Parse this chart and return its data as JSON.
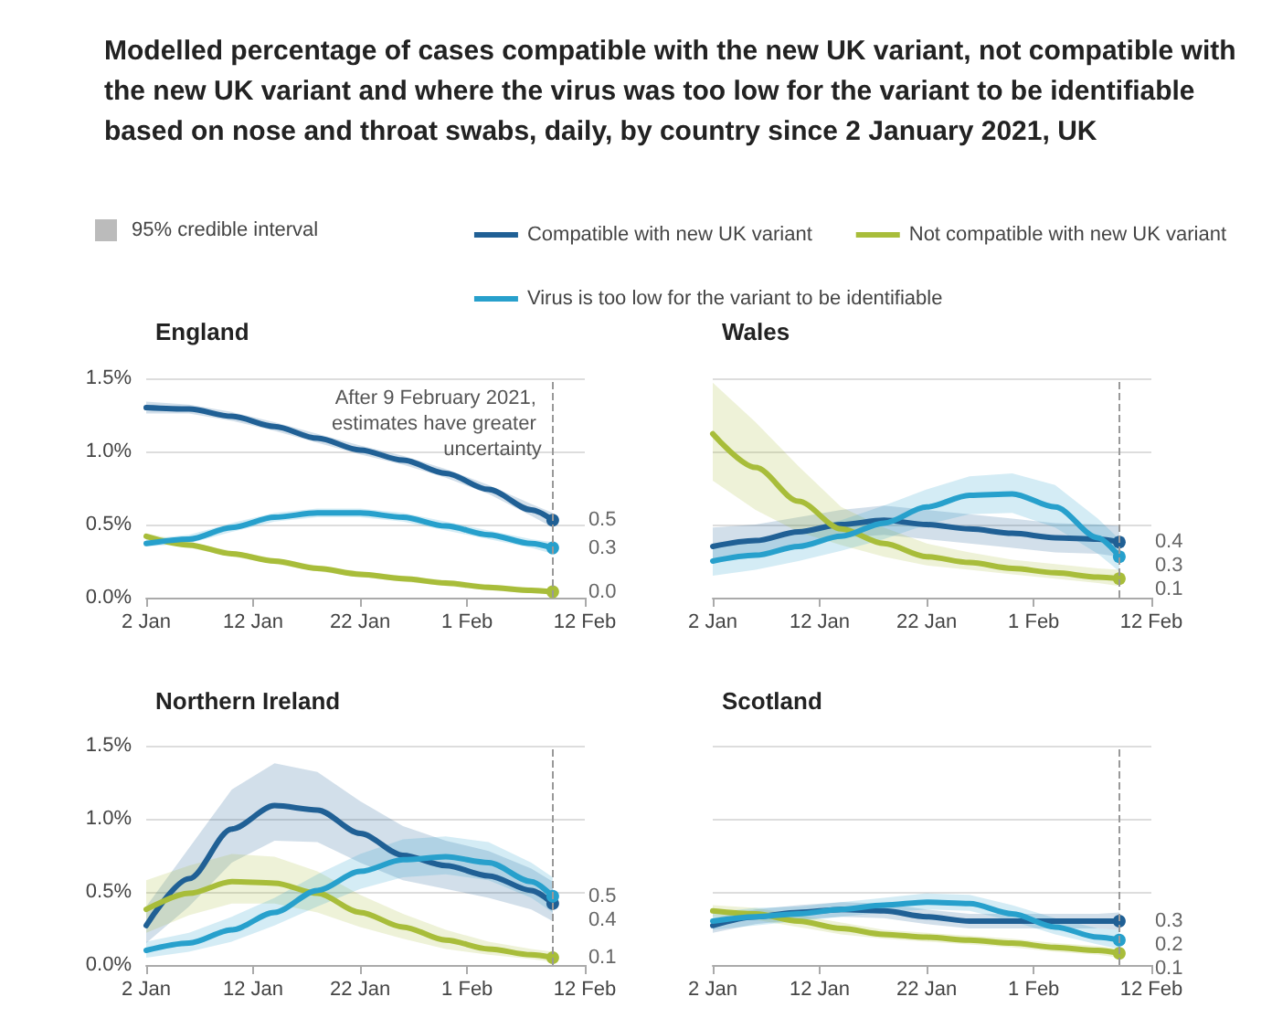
{
  "chart_data": [
    {
      "type": "line",
      "title": "Modelled percentage of cases compatible with the new UK variant, not compatible with the new UK variant and where the virus was too low for the variant to be identifiable based on nose and throat swabs, daily, by country since 2 January 2021, UK",
      "subtitle": "England",
      "annotations": [
        "95% credible interval"
      ],
      "legend": "top right",
      "grid": "y",
      "x": [
        "2021-01-02",
        "2021-01-06",
        "2021-01-10",
        "2021-01-14",
        "2021-01-18",
        "2021-01-22",
        "2021-01-26",
        "2021-01-30",
        "2021-02-03",
        "2021-02-07",
        "2021-02-09"
      ],
      "xlim": [
        "2021-01-02",
        "2021-02-12"
      ],
      "xticks": [
        {
          "value": "2021-01-02",
          "label": "2 Jan"
        },
        {
          "value": "2021-01-12",
          "label": "12 Jan"
        },
        {
          "value": "2021-01-22",
          "label": "22 Jan"
        },
        {
          "value": "2021-02-01",
          "label": "1 Feb"
        },
        {
          "value": "2021-02-12",
          "label": "12 Feb"
        }
      ],
      "ylim": [
        0,
        1.5
      ],
      "yticks": [
        {
          "value": 0,
          "label": "0.0%"
        },
        {
          "value": 0.5,
          "label": "0.5%"
        },
        {
          "value": 1,
          "label": "1.0%"
        },
        {
          "value": 1.5,
          "label": "1.5%"
        }
      ],
      "ref_lines": [
        {
          "axis": "x",
          "value": "2021-02-09",
          "label": "After 9 February 2021, estimates have greater uncertainty",
          "line_style": "dashed",
          "color": "#999999"
        }
      ],
      "series": [
        {
          "name": "Compatible with new UK variant",
          "color": "#206095",
          "values": [
            1.3,
            1.29,
            1.24,
            1.17,
            1.09,
            1.01,
            0.94,
            0.85,
            0.74,
            0.6,
            0.53
          ],
          "lower": [
            1.26,
            1.26,
            1.21,
            1.14,
            1.06,
            0.98,
            0.91,
            0.82,
            0.71,
            0.56,
            0.48
          ],
          "upper": [
            1.34,
            1.32,
            1.27,
            1.2,
            1.12,
            1.04,
            0.97,
            0.88,
            0.77,
            0.64,
            0.58
          ],
          "value_labels": [
            null,
            null,
            null,
            null,
            null,
            null,
            null,
            null,
            null,
            null,
            "0.5"
          ]
        },
        {
          "name": "Not compatible with new UK variant",
          "color": "#a8bd3a",
          "values": [
            0.42,
            0.36,
            0.3,
            0.25,
            0.2,
            0.16,
            0.13,
            0.1,
            0.07,
            0.05,
            0.04
          ],
          "lower": [
            0.4,
            0.34,
            0.28,
            0.23,
            0.18,
            0.14,
            0.11,
            0.08,
            0.05,
            0.03,
            0.02
          ],
          "upper": [
            0.44,
            0.38,
            0.32,
            0.27,
            0.22,
            0.18,
            0.15,
            0.12,
            0.09,
            0.07,
            0.06
          ],
          "value_labels": [
            null,
            null,
            null,
            null,
            null,
            null,
            null,
            null,
            null,
            null,
            "0.0"
          ]
        },
        {
          "name": "Virus is too low for the variant to be identifiable",
          "color": "#27a0cc",
          "values": [
            0.37,
            0.4,
            0.48,
            0.55,
            0.58,
            0.58,
            0.55,
            0.49,
            0.43,
            0.37,
            0.34
          ],
          "lower": [
            0.35,
            0.37,
            0.45,
            0.52,
            0.55,
            0.55,
            0.52,
            0.46,
            0.4,
            0.34,
            0.3
          ],
          "upper": [
            0.4,
            0.43,
            0.51,
            0.58,
            0.61,
            0.61,
            0.58,
            0.52,
            0.46,
            0.4,
            0.38
          ],
          "value_labels": [
            null,
            null,
            null,
            null,
            null,
            null,
            null,
            null,
            null,
            null,
            "0.3"
          ]
        }
      ]
    },
    {
      "type": "line",
      "subtitle": "Wales",
      "grid": "y",
      "tick_labels": "x",
      "x": [
        "2021-01-02",
        "2021-01-06",
        "2021-01-10",
        "2021-01-14",
        "2021-01-18",
        "2021-01-22",
        "2021-01-26",
        "2021-01-30",
        "2021-02-03",
        "2021-02-07",
        "2021-02-09"
      ],
      "xlim": [
        "2021-01-02",
        "2021-02-12"
      ],
      "xticks": [
        {
          "value": "2021-01-02",
          "label": "2 Jan"
        },
        {
          "value": "2021-01-12",
          "label": "12 Jan"
        },
        {
          "value": "2021-01-22",
          "label": "22 Jan"
        },
        {
          "value": "2021-02-01",
          "label": "1 Feb"
        },
        {
          "value": "2021-02-12",
          "label": "12 Feb"
        }
      ],
      "ylim": [
        0,
        1.5
      ],
      "yticks": [
        0,
        0.5,
        1,
        1.5
      ],
      "ref_lines": [
        {
          "axis": "x",
          "value": "2021-02-09",
          "line_style": "dashed",
          "color": "#999999"
        }
      ],
      "series": [
        {
          "color": "#206095",
          "values": [
            0.35,
            0.39,
            0.45,
            0.5,
            0.53,
            0.5,
            0.47,
            0.44,
            0.41,
            0.4,
            0.38
          ],
          "lower": [
            0.25,
            0.3,
            0.36,
            0.41,
            0.43,
            0.4,
            0.37,
            0.34,
            0.31,
            0.3,
            0.28
          ],
          "upper": [
            0.48,
            0.5,
            0.55,
            0.6,
            0.63,
            0.6,
            0.57,
            0.54,
            0.51,
            0.5,
            0.49
          ],
          "value_labels": [
            null,
            null,
            null,
            null,
            null,
            null,
            null,
            null,
            null,
            null,
            "0.4"
          ]
        },
        {
          "color": "#a8bd3a",
          "values": [
            1.12,
            0.89,
            0.66,
            0.47,
            0.37,
            0.28,
            0.24,
            0.2,
            0.17,
            0.14,
            0.13
          ],
          "lower": [
            0.8,
            0.6,
            0.45,
            0.36,
            0.28,
            0.22,
            0.19,
            0.16,
            0.13,
            0.1,
            0.08
          ],
          "upper": [
            1.47,
            1.2,
            0.9,
            0.62,
            0.48,
            0.37,
            0.31,
            0.26,
            0.23,
            0.2,
            0.19
          ],
          "value_labels": [
            null,
            null,
            null,
            null,
            null,
            null,
            null,
            null,
            null,
            null,
            "0.1"
          ]
        },
        {
          "color": "#27a0cc",
          "values": [
            0.25,
            0.29,
            0.35,
            0.42,
            0.51,
            0.62,
            0.7,
            0.71,
            0.62,
            0.41,
            0.28
          ],
          "lower": [
            0.15,
            0.19,
            0.25,
            0.32,
            0.4,
            0.5,
            0.57,
            0.58,
            0.48,
            0.3,
            0.18
          ],
          "upper": [
            0.37,
            0.4,
            0.46,
            0.53,
            0.63,
            0.74,
            0.83,
            0.85,
            0.77,
            0.54,
            0.4
          ],
          "value_labels": [
            null,
            null,
            null,
            null,
            null,
            null,
            null,
            null,
            null,
            null,
            "0.3"
          ]
        }
      ]
    },
    {
      "type": "line",
      "subtitle": "Northern Ireland",
      "grid": "y",
      "x": [
        "2021-01-02",
        "2021-01-06",
        "2021-01-10",
        "2021-01-14",
        "2021-01-18",
        "2021-01-22",
        "2021-01-26",
        "2021-01-30",
        "2021-02-03",
        "2021-02-07",
        "2021-02-09"
      ],
      "xlim": [
        "2021-01-02",
        "2021-02-12"
      ],
      "xticks": [
        {
          "value": "2021-01-02",
          "label": "2 Jan"
        },
        {
          "value": "2021-01-12",
          "label": "12 Jan"
        },
        {
          "value": "2021-01-22",
          "label": "22 Jan"
        },
        {
          "value": "2021-02-01",
          "label": "1 Feb"
        },
        {
          "value": "2021-02-12",
          "label": "12 Feb"
        }
      ],
      "ylim": [
        0,
        1.5
      ],
      "yticks": [
        {
          "value": 0,
          "label": "0.0%"
        },
        {
          "value": 0.5,
          "label": "0.5%"
        },
        {
          "value": 1,
          "label": "1.0%"
        },
        {
          "value": 1.5,
          "label": "1.5%"
        }
      ],
      "ref_lines": [
        {
          "axis": "x",
          "value": "2021-02-09",
          "line_style": "dashed",
          "color": "#999999"
        }
      ],
      "series": [
        {
          "color": "#206095",
          "values": [
            0.27,
            0.59,
            0.93,
            1.09,
            1.06,
            0.9,
            0.75,
            0.68,
            0.61,
            0.51,
            0.42
          ],
          "lower": [
            0.15,
            0.4,
            0.7,
            0.85,
            0.84,
            0.7,
            0.58,
            0.52,
            0.46,
            0.38,
            0.3
          ],
          "upper": [
            0.4,
            0.8,
            1.2,
            1.38,
            1.32,
            1.12,
            0.95,
            0.85,
            0.78,
            0.66,
            0.57
          ],
          "value_labels": [
            null,
            null,
            null,
            null,
            null,
            null,
            null,
            null,
            null,
            null,
            "0.4"
          ]
        },
        {
          "color": "#a8bd3a",
          "values": [
            0.38,
            0.49,
            0.57,
            0.56,
            0.49,
            0.36,
            0.26,
            0.17,
            0.11,
            0.07,
            0.05
          ],
          "lower": [
            0.22,
            0.34,
            0.42,
            0.42,
            0.36,
            0.26,
            0.18,
            0.11,
            0.07,
            0.04,
            0.02
          ],
          "upper": [
            0.58,
            0.68,
            0.76,
            0.74,
            0.64,
            0.48,
            0.35,
            0.24,
            0.16,
            0.11,
            0.09
          ],
          "value_labels": [
            null,
            null,
            null,
            null,
            null,
            null,
            null,
            null,
            null,
            null,
            "0.1"
          ]
        },
        {
          "color": "#27a0cc",
          "values": [
            0.1,
            0.15,
            0.24,
            0.36,
            0.51,
            0.64,
            0.72,
            0.74,
            0.7,
            0.57,
            0.47
          ],
          "lower": [
            0.05,
            0.09,
            0.16,
            0.27,
            0.4,
            0.52,
            0.6,
            0.62,
            0.58,
            0.46,
            0.36
          ],
          "upper": [
            0.16,
            0.22,
            0.33,
            0.46,
            0.62,
            0.76,
            0.86,
            0.88,
            0.84,
            0.7,
            0.6
          ],
          "value_labels": [
            null,
            null,
            null,
            null,
            null,
            null,
            null,
            null,
            null,
            null,
            "0.5"
          ]
        }
      ]
    },
    {
      "type": "line",
      "subtitle": "Scotland",
      "grid": "y",
      "tick_labels": "x",
      "x": [
        "2021-01-02",
        "2021-01-06",
        "2021-01-10",
        "2021-01-14",
        "2021-01-18",
        "2021-01-22",
        "2021-01-26",
        "2021-01-30",
        "2021-02-03",
        "2021-02-07",
        "2021-02-09"
      ],
      "xlim": [
        "2021-01-02",
        "2021-02-12"
      ],
      "xticks": [
        {
          "value": "2021-01-02",
          "label": "2 Jan"
        },
        {
          "value": "2021-01-12",
          "label": "12 Jan"
        },
        {
          "value": "2021-01-22",
          "label": "22 Jan"
        },
        {
          "value": "2021-02-01",
          "label": "1 Feb"
        },
        {
          "value": "2021-02-12",
          "label": "12 Feb"
        }
      ],
      "ylim": [
        0,
        1.5
      ],
      "yticks": [
        0,
        0.5,
        1,
        1.5
      ],
      "ref_lines": [
        {
          "axis": "x",
          "value": "2021-02-09",
          "line_style": "dashed",
          "color": "#999999"
        }
      ],
      "series": [
        {
          "color": "#206095",
          "values": [
            0.27,
            0.33,
            0.36,
            0.38,
            0.37,
            0.33,
            0.3,
            0.3,
            0.3,
            0.3,
            0.3
          ],
          "lower": [
            0.22,
            0.28,
            0.31,
            0.33,
            0.32,
            0.28,
            0.25,
            0.25,
            0.25,
            0.25,
            0.24
          ],
          "upper": [
            0.32,
            0.38,
            0.41,
            0.43,
            0.42,
            0.38,
            0.35,
            0.35,
            0.35,
            0.35,
            0.36
          ],
          "value_labels": [
            null,
            null,
            null,
            null,
            null,
            null,
            null,
            null,
            null,
            null,
            "0.3"
          ]
        },
        {
          "color": "#a8bd3a",
          "values": [
            0.37,
            0.35,
            0.3,
            0.25,
            0.21,
            0.19,
            0.17,
            0.15,
            0.12,
            0.1,
            0.08
          ],
          "lower": [
            0.33,
            0.31,
            0.26,
            0.21,
            0.18,
            0.16,
            0.14,
            0.12,
            0.09,
            0.07,
            0.05
          ],
          "upper": [
            0.41,
            0.39,
            0.34,
            0.29,
            0.24,
            0.22,
            0.2,
            0.18,
            0.15,
            0.13,
            0.11
          ],
          "value_labels": [
            null,
            null,
            null,
            null,
            null,
            null,
            null,
            null,
            null,
            null,
            "0.1"
          ]
        },
        {
          "color": "#27a0cc",
          "values": [
            0.3,
            0.33,
            0.35,
            0.38,
            0.41,
            0.43,
            0.42,
            0.35,
            0.26,
            0.19,
            0.17
          ],
          "lower": [
            0.24,
            0.27,
            0.3,
            0.33,
            0.36,
            0.38,
            0.37,
            0.3,
            0.21,
            0.14,
            0.11
          ],
          "upper": [
            0.36,
            0.39,
            0.4,
            0.43,
            0.46,
            0.49,
            0.48,
            0.41,
            0.32,
            0.25,
            0.24
          ],
          "value_labels": [
            null,
            null,
            null,
            null,
            null,
            null,
            null,
            null,
            null,
            null,
            "0.2"
          ]
        }
      ]
    }
  ]
}
